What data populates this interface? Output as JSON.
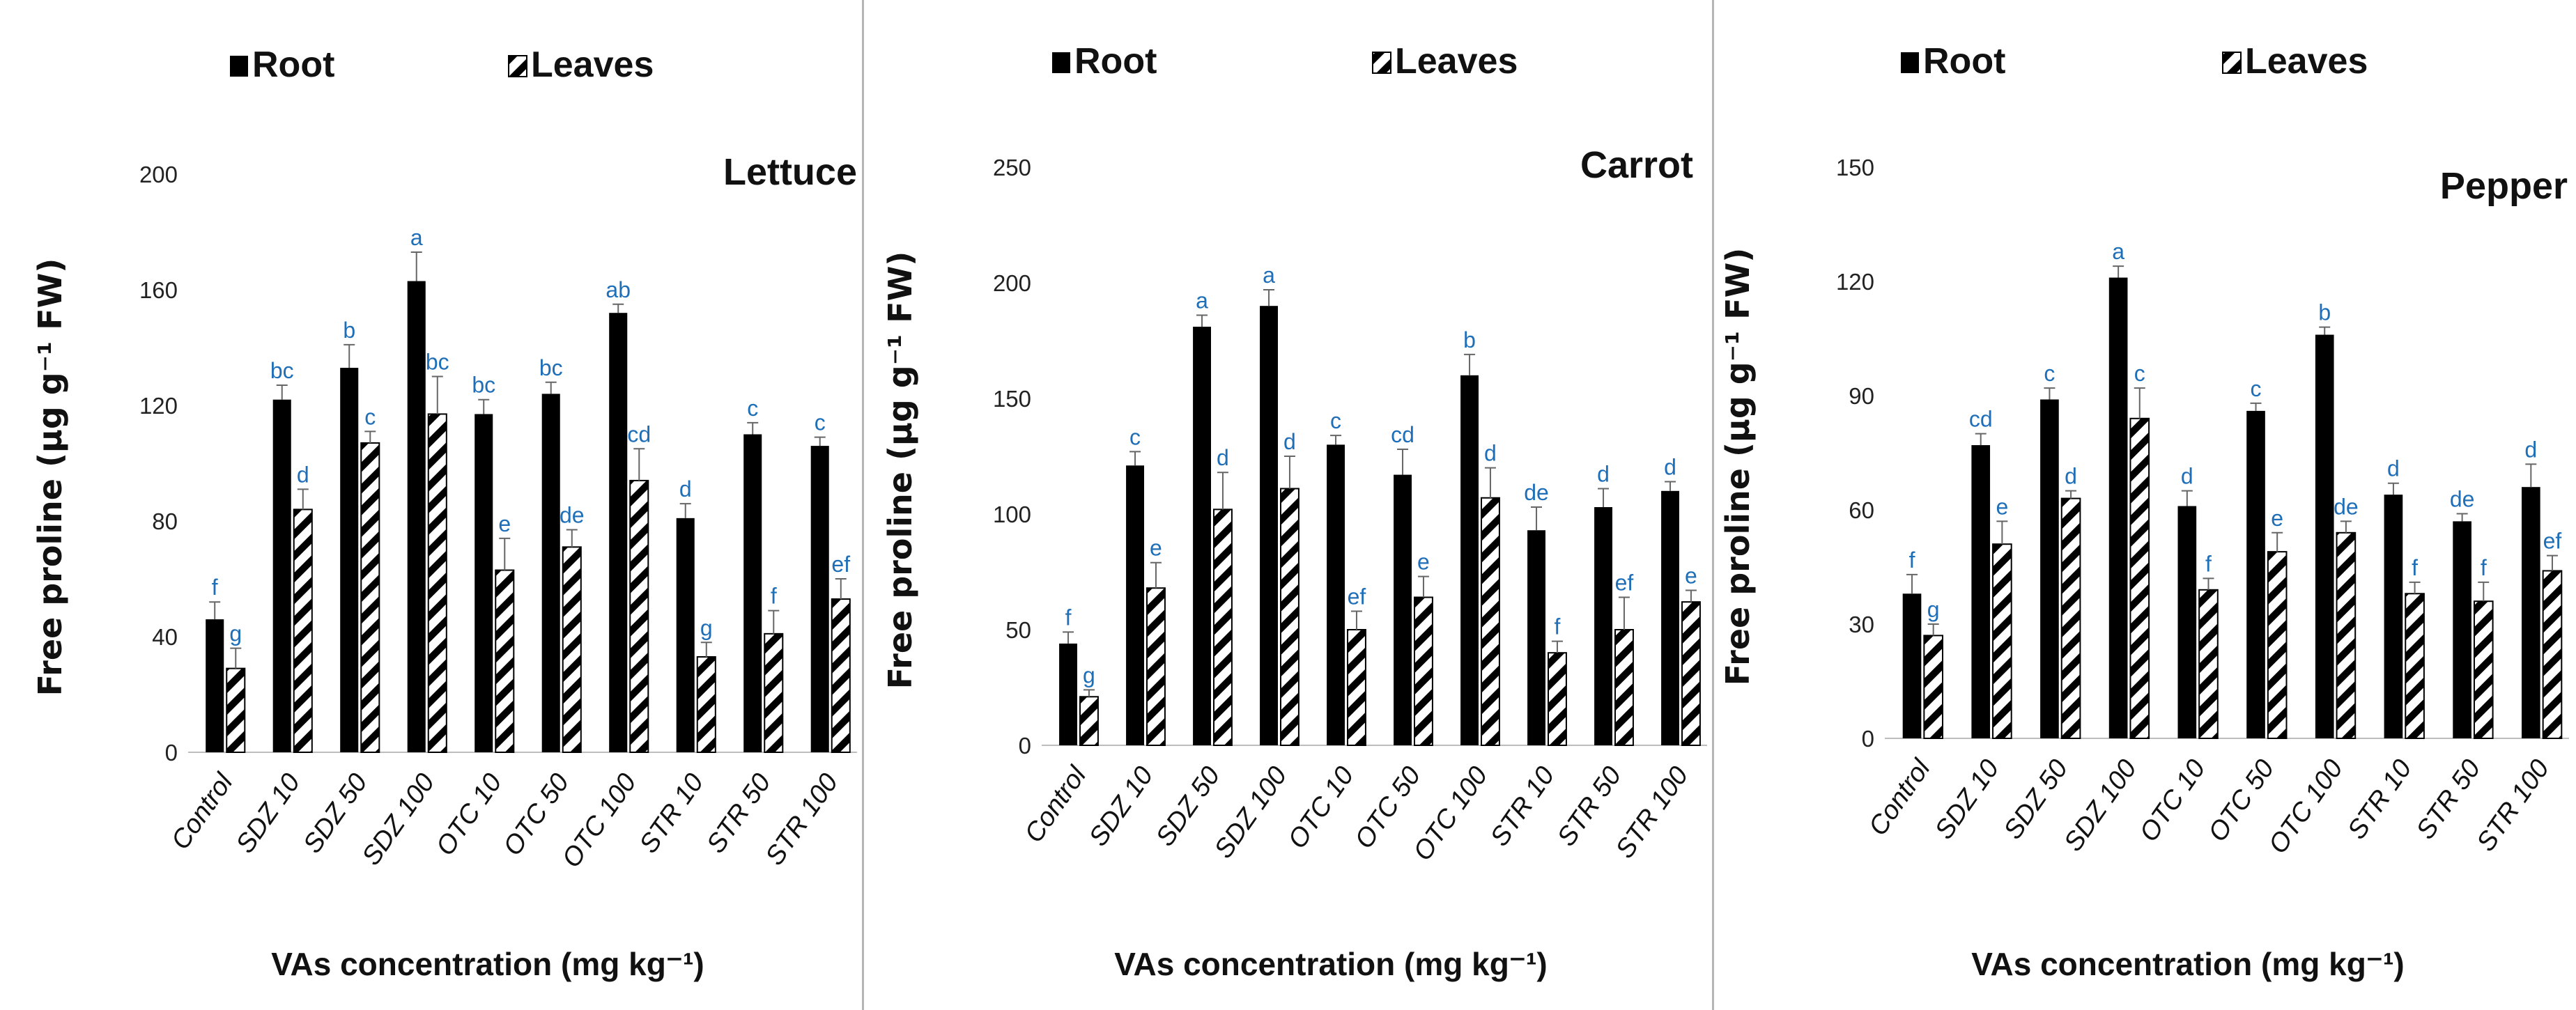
{
  "chart_data": [
    {
      "type": "bar",
      "title": "Lettuce",
      "ylabel": "Free proline (µg g⁻¹ FW)",
      "xlabel": "VAs concentration (mg kg⁻¹)",
      "ylim": [
        0,
        200
      ],
      "yticks": [
        0,
        40,
        80,
        120,
        160,
        200
      ],
      "legend_position": "top",
      "categories": [
        "Control",
        "SDZ 10",
        "SDZ 50",
        "SDZ 100",
        "OTC 10",
        "OTC 50",
        "OTC 100",
        "STR 10",
        "STR 50",
        "STR 100"
      ],
      "series": [
        {
          "name": "Root",
          "values": [
            46,
            122,
            133,
            163,
            117,
            124,
            152,
            81,
            110,
            106
          ],
          "errors": [
            6,
            5,
            8,
            10,
            5,
            4,
            3,
            5,
            4,
            3
          ],
          "letters": [
            "f",
            "bc",
            "b",
            "a",
            "bc",
            "bc",
            "ab",
            "d",
            "c",
            "c"
          ]
        },
        {
          "name": "Leaves",
          "values": [
            29,
            84,
            107,
            117,
            63,
            71,
            94,
            33,
            41,
            53
          ],
          "errors": [
            7,
            7,
            4,
            13,
            11,
            6,
            11,
            5,
            8,
            7
          ],
          "letters": [
            "g",
            "d",
            "c",
            "bc",
            "e",
            "de",
            "cd",
            "g",
            "f",
            "ef"
          ]
        }
      ]
    },
    {
      "type": "bar",
      "title": "Carrot",
      "ylabel": "Free proline (µg g⁻¹ FW)",
      "xlabel": "VAs concentration (mg kg⁻¹)",
      "ylim": [
        0,
        250
      ],
      "yticks": [
        0,
        50,
        100,
        150,
        200,
        250
      ],
      "legend_position": "top",
      "categories": [
        "Control",
        "SDZ 10",
        "SDZ 50",
        "SDZ 100",
        "OTC 10",
        "OTC 50",
        "OTC 100",
        "STR 10",
        "STR 50",
        "STR 100"
      ],
      "series": [
        {
          "name": "Root",
          "values": [
            44,
            121,
            181,
            190,
            130,
            117,
            160,
            93,
            103,
            110
          ],
          "errors": [
            5,
            6,
            5,
            7,
            4,
            11,
            9,
            10,
            8,
            4
          ],
          "letters": [
            "f",
            "c",
            "a",
            "a",
            "c",
            "cd",
            "b",
            "de",
            "d",
            "d"
          ]
        },
        {
          "name": "Leaves",
          "values": [
            21,
            68,
            102,
            111,
            50,
            64,
            107,
            40,
            50,
            62
          ],
          "errors": [
            3,
            11,
            16,
            14,
            8,
            9,
            13,
            5,
            14,
            5
          ],
          "letters": [
            "g",
            "e",
            "d",
            "d",
            "ef",
            "e",
            "d",
            "f",
            "ef",
            "e"
          ]
        }
      ]
    },
    {
      "type": "bar",
      "title": "Pepper",
      "ylabel": "Free proline (µg g⁻¹ FW)",
      "xlabel": "VAs concentration (mg kg⁻¹)",
      "ylim": [
        0,
        150
      ],
      "yticks": [
        0,
        30,
        60,
        90,
        120,
        150
      ],
      "legend_position": "top",
      "categories": [
        "Control",
        "SDZ 10",
        "SDZ 50",
        "SDZ 100",
        "OTC 10",
        "OTC 50",
        "OTC 100",
        "STR 10",
        "STR 50",
        "STR 100"
      ],
      "series": [
        {
          "name": "Root",
          "values": [
            38,
            77,
            89,
            121,
            61,
            86,
            106,
            64,
            57,
            66
          ],
          "errors": [
            5,
            3,
            3,
            3,
            4,
            2,
            2,
            3,
            2,
            6
          ],
          "letters": [
            "f",
            "cd",
            "c",
            "a",
            "d",
            "c",
            "b",
            "d",
            "de",
            "d"
          ]
        },
        {
          "name": "Leaves",
          "values": [
            27,
            51,
            63,
            84,
            39,
            49,
            54,
            38,
            36,
            44
          ],
          "errors": [
            3,
            6,
            2,
            8,
            3,
            5,
            3,
            3,
            5,
            4
          ],
          "letters": [
            "g",
            "e",
            "d",
            "c",
            "f",
            "e",
            "de",
            "f",
            "f",
            "ef"
          ]
        }
      ]
    }
  ]
}
